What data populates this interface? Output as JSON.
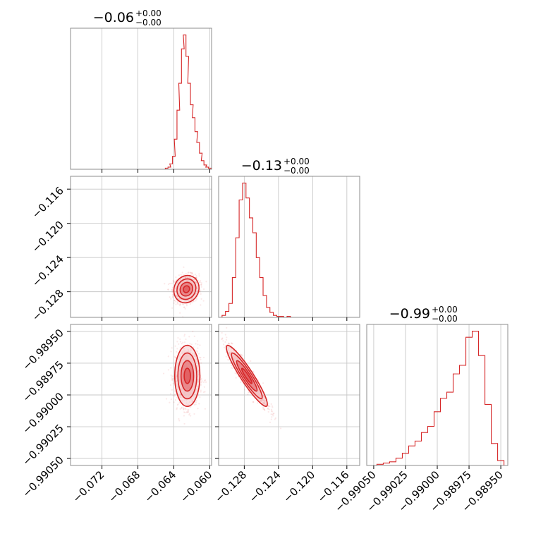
{
  "colors": {
    "accent": "#d62728",
    "fill_dark": "#e05a5d",
    "fill_light": "#f3c2c3",
    "grid": "#c8c8c8"
  },
  "chart_data": {
    "type": "corner",
    "parameters": [
      {
        "title": {
          "value": "−0.06",
          "sup": "+0.00",
          "sub": "−0.00"
        },
        "range": [
          -0.0755,
          -0.0598
        ],
        "ticks": [
          -0.072,
          -0.068,
          -0.064,
          -0.06
        ],
        "tick_labels": [
          "−0.072",
          "−0.068",
          "−0.064",
          "−0.060"
        ],
        "hist": {
          "x": [
            -0.0648,
            -0.0645,
            -0.0643,
            -0.064,
            -0.0638,
            -0.0635,
            -0.0633,
            -0.063,
            -0.0628,
            -0.0625,
            -0.0623,
            -0.062,
            -0.0618,
            -0.0615,
            -0.0613,
            -0.061,
            -0.0608,
            -0.0605,
            -0.0603,
            -0.06
          ],
          "y": [
            1,
            2,
            5,
            12,
            28,
            55,
            80,
            112,
            125,
            105,
            80,
            60,
            48,
            35,
            25,
            15,
            8,
            4,
            2,
            1
          ]
        }
      },
      {
        "title": {
          "value": "−0.13",
          "sup": "+0.00",
          "sub": "−0.00"
        },
        "range": [
          -0.131,
          -0.1145
        ],
        "ticks": [
          -0.128,
          -0.124,
          -0.12,
          -0.116
        ],
        "tick_labels": [
          "−0.128",
          "−0.124",
          "−0.120",
          "−0.116"
        ],
        "hist": {
          "x": [
            -0.1304,
            -0.13,
            -0.1296,
            -0.1292,
            -0.1288,
            -0.1284,
            -0.128,
            -0.1276,
            -0.1272,
            -0.1268,
            -0.1264,
            -0.126,
            -0.1256,
            -0.1252,
            -0.1248,
            -0.1244,
            -0.124,
            -0.1236,
            -0.1232,
            -0.1228,
            -0.1224
          ],
          "y": [
            2,
            6,
            14,
            40,
            80,
            118,
            135,
            120,
            100,
            85,
            60,
            40,
            22,
            10,
            5,
            2,
            1,
            1,
            0,
            1,
            0
          ]
        }
      },
      {
        "title": {
          "value": "−0.99",
          "sup": "+0.00",
          "sub": "−0.00"
        },
        "range": [
          -0.990555,
          -0.989445
        ],
        "ticks": [
          -0.9905,
          -0.99025,
          -0.99,
          -0.98975,
          -0.9895
        ],
        "tick_labels": [
          "−0.99050",
          "−0.99025",
          "−0.99000",
          "−0.98975",
          "−0.98950"
        ],
        "hist": {
          "x": [
            -0.99045,
            -0.9904,
            -0.99035,
            -0.9903,
            -0.99025,
            -0.9902,
            -0.99015,
            -0.9901,
            -0.99005,
            -0.99,
            -0.98995,
            -0.9899,
            -0.98985,
            -0.9898,
            -0.98975,
            -0.9897,
            -0.98965,
            -0.9896,
            -0.98955,
            -0.9895
          ],
          "y": [
            1,
            2,
            3,
            6,
            10,
            16,
            20,
            27,
            32,
            44,
            55,
            60,
            75,
            82,
            105,
            110,
            90,
            50,
            18,
            4
          ]
        }
      }
    ],
    "pairs": [
      {
        "x_param": 0,
        "y_param": 1,
        "y_ticks": [
          -0.116,
          -0.12,
          -0.124,
          -0.128
        ],
        "y_tick_labels": [
          "−0.116",
          "−0.120",
          "−0.124",
          "−0.128"
        ],
        "center": [
          -0.0626,
          -0.1277
        ],
        "spread": [
          0.0007,
          0.0008
        ],
        "corr": 0.1,
        "count": 900
      },
      {
        "x_param": 0,
        "y_param": 2,
        "y_ticks": [
          -0.9895,
          -0.98975,
          -0.99,
          -0.99025,
          -0.9905
        ],
        "y_tick_labels": [
          "−0.98950",
          "−0.98975",
          "−0.99000",
          "−0.99025",
          "−0.99050"
        ],
        "center": [
          -0.0625,
          -0.98985
        ],
        "spread": [
          0.0007,
          0.00012
        ],
        "corr": 0.0,
        "count": 900
      },
      {
        "x_param": 1,
        "y_param": 2,
        "center": [
          -0.1277,
          -0.98985
        ],
        "spread": [
          0.0012,
          0.00012
        ],
        "corr": -0.93,
        "count": 900
      }
    ],
    "grid": true
  }
}
